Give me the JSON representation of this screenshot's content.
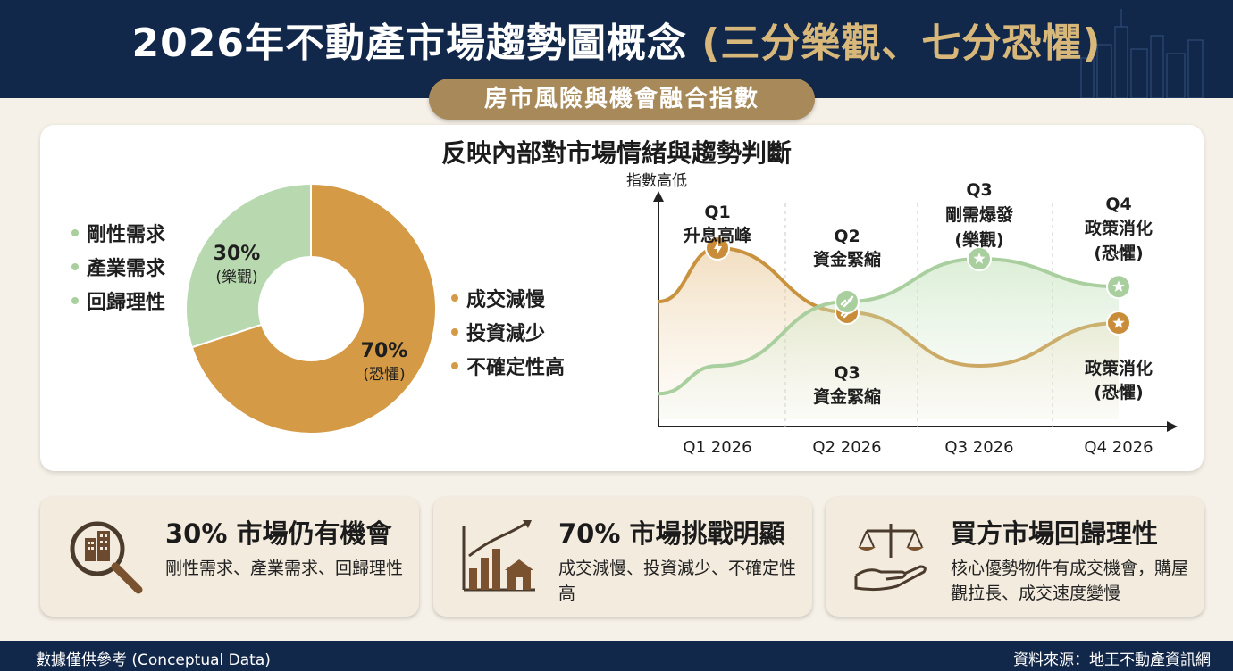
{
  "header": {
    "title_main": "2026年不動產市場趨勢圖概念",
    "title_accent": "(三分樂觀、七分恐懼)",
    "subtitle": "房市風險與機會融合指數"
  },
  "card": {
    "heading": "反映內部對市場情緒與趨勢判斷"
  },
  "donut": {
    "legend_left": [
      "剛性需求",
      "產業需求",
      "回歸理性"
    ],
    "legend_right": [
      "成交減慢",
      "投資減少",
      "不確定性高"
    ],
    "optimism": {
      "pct": "30%",
      "label": "(樂觀)"
    },
    "fear": {
      "pct": "70%",
      "label": "(恐懼)"
    }
  },
  "line_chart": {
    "ylabel": "指數高低",
    "annotations": {
      "q1_top": [
        "Q1",
        "升息高峰"
      ],
      "q2_top": [
        "Q2",
        "資金緊縮"
      ],
      "q3_top": [
        "Q3",
        "剛需爆發",
        "(樂觀)"
      ],
      "q4_top": [
        "Q4",
        "政策消化",
        "(恐懼)"
      ],
      "q3_bottom": [
        "Q3",
        "資金緊縮"
      ],
      "q4_bottom": [
        "政策消化",
        "(恐懼)"
      ]
    }
  },
  "chart_data": [
    {
      "type": "pie",
      "categories": [
        "樂觀",
        "恐懼"
      ],
      "values": [
        30,
        70
      ],
      "colors": [
        "#b8d9b0",
        "#d49a45"
      ]
    },
    {
      "type": "line",
      "categories": [
        "Q1 2026",
        "Q2 2026",
        "Q3 2026",
        "Q4 2026"
      ],
      "ylabel": "指數高低",
      "series": [
        {
          "values": [
            0.8,
            0.5,
            0.25,
            0.45
          ],
          "color": "#c9923f"
        },
        {
          "values": [
            0.25,
            0.55,
            0.75,
            0.62
          ],
          "color": "#a9cf9f"
        }
      ]
    }
  ],
  "bottom_cards": [
    {
      "title": "30% 市場仍有機會",
      "body": "剛性需求、產業需求、回歸理性"
    },
    {
      "title": "70% 市場挑戰明顯",
      "body": "成交減慢、投資減少、不確定性高"
    },
    {
      "title": "買方市場回歸理性",
      "body": "核心優勢物件有成交機會，購屋觀拉長、成交速度變慢"
    }
  ],
  "footer": {
    "left": "數據僅供參考 (Conceptual Data)",
    "right": "資料來源：地王不動產資訊網"
  },
  "colors": {
    "navy": "#12284a",
    "gold": "#d49a45",
    "green": "#a9cf9f",
    "tan": "#a88a5a"
  },
  "icons": [
    "magnifier-buildings-icon",
    "bar-chart-house-icon",
    "scale-hand-icon",
    "lightning-icon",
    "link-icon",
    "star-icon"
  ]
}
